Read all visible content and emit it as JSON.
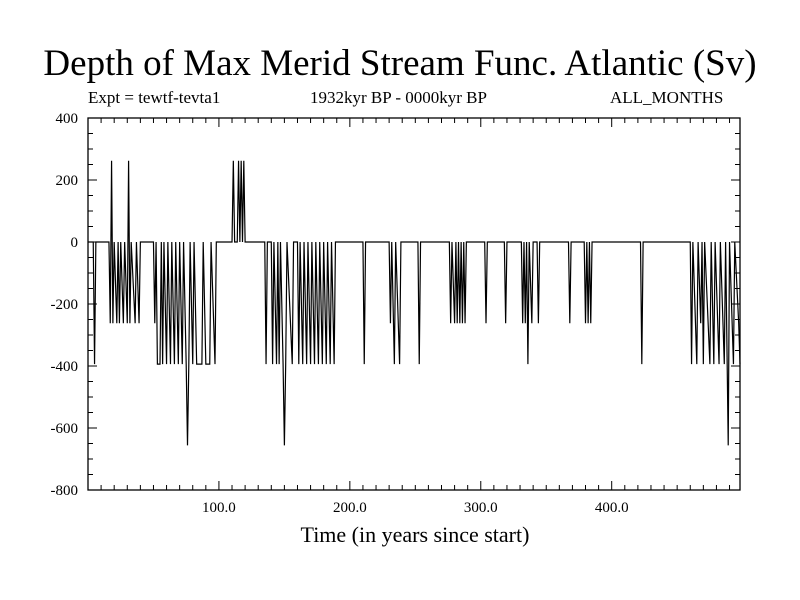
{
  "chart_data": {
    "type": "line",
    "title": "Depth of Max Merid Stream Func. Atlantic (Sv)",
    "experiment": "Expt = tewtf-tevta1",
    "period": "1932kyr BP - 0000kyr BP",
    "months": "ALL_MONTHS",
    "xlabel": "Time (in years since start)",
    "ylabel": "",
    "xlim": [
      0,
      498
    ],
    "ylim": [
      -800,
      400
    ],
    "x_ticks": [
      100,
      200,
      300,
      400
    ],
    "x_tick_labels": [
      "100.0",
      "200.0",
      "300.0",
      "400.0"
    ],
    "y_ticks": [
      400,
      200,
      0,
      -200,
      -400,
      -600,
      -800
    ],
    "y_tick_labels": [
      "400",
      "200",
      "0",
      "-200",
      "-400",
      "-600",
      "-800"
    ],
    "series": [
      {
        "name": "Depth of Max Merid Stream Func.",
        "segments": [
          [
            0,
            0
          ],
          [
            4,
            0
          ],
          [
            5,
            -394
          ],
          [
            6,
            0
          ],
          [
            16,
            0
          ],
          [
            17,
            -262
          ],
          [
            18,
            262
          ],
          [
            19,
            -262
          ],
          [
            20,
            0
          ],
          [
            22,
            -262
          ],
          [
            23,
            0
          ],
          [
            24,
            -262
          ],
          [
            25,
            0
          ],
          [
            27,
            -262
          ],
          [
            28,
            0
          ],
          [
            30,
            -262
          ],
          [
            31,
            262
          ],
          [
            32,
            -262
          ],
          [
            33,
            0
          ],
          [
            36,
            -262
          ],
          [
            37,
            0
          ],
          [
            39,
            -262
          ],
          [
            40,
            0
          ],
          [
            50,
            0
          ],
          [
            51,
            -262
          ],
          [
            52,
            0
          ],
          [
            53,
            -394
          ],
          [
            55,
            -394
          ],
          [
            56,
            0
          ],
          [
            57,
            -394
          ],
          [
            58,
            0
          ],
          [
            60,
            -394
          ],
          [
            61,
            0
          ],
          [
            63,
            -394
          ],
          [
            64,
            0
          ],
          [
            66,
            -394
          ],
          [
            67,
            0
          ],
          [
            69,
            -394
          ],
          [
            70,
            0
          ],
          [
            72,
            -394
          ],
          [
            73,
            0
          ],
          [
            75,
            -394
          ],
          [
            76,
            -656
          ],
          [
            77,
            -394
          ],
          [
            78,
            0
          ],
          [
            80,
            -394
          ],
          [
            81,
            0
          ],
          [
            83,
            -394
          ],
          [
            87,
            -394
          ],
          [
            88,
            0
          ],
          [
            90,
            -394
          ],
          [
            93,
            -394
          ],
          [
            94,
            0
          ],
          [
            97,
            -394
          ],
          [
            98,
            0
          ],
          [
            110,
            0
          ],
          [
            111,
            262
          ],
          [
            112,
            0
          ],
          [
            114,
            0
          ],
          [
            115,
            262
          ],
          [
            116,
            0
          ],
          [
            117,
            262
          ],
          [
            118,
            0
          ],
          [
            119,
            262
          ],
          [
            120,
            0
          ],
          [
            135,
            0
          ],
          [
            136,
            -394
          ],
          [
            137,
            0
          ],
          [
            140,
            0
          ],
          [
            141,
            -394
          ],
          [
            142,
            0
          ],
          [
            144,
            -394
          ],
          [
            145,
            0
          ],
          [
            146,
            -394
          ],
          [
            147,
            0
          ],
          [
            149,
            -394
          ],
          [
            150,
            -656
          ],
          [
            151,
            -394
          ],
          [
            152,
            0
          ],
          [
            156,
            -394
          ],
          [
            157,
            0
          ],
          [
            160,
            0
          ],
          [
            161,
            -394
          ],
          [
            162,
            0
          ],
          [
            164,
            -394
          ],
          [
            165,
            0
          ],
          [
            167,
            -394
          ],
          [
            168,
            0
          ],
          [
            170,
            -394
          ],
          [
            171,
            0
          ],
          [
            173,
            -394
          ],
          [
            174,
            0
          ],
          [
            176,
            -394
          ],
          [
            177,
            0
          ],
          [
            179,
            -394
          ],
          [
            180,
            0
          ],
          [
            182,
            -394
          ],
          [
            183,
            0
          ],
          [
            185,
            -394
          ],
          [
            186,
            0
          ],
          [
            188,
            -394
          ],
          [
            189,
            0
          ],
          [
            210,
            0
          ],
          [
            211,
            -394
          ],
          [
            212,
            0
          ],
          [
            230,
            0
          ],
          [
            231,
            -262
          ],
          [
            232,
            0
          ],
          [
            234,
            -394
          ],
          [
            235,
            0
          ],
          [
            238,
            -394
          ],
          [
            239,
            0
          ],
          [
            252,
            0
          ],
          [
            253,
            -394
          ],
          [
            254,
            0
          ],
          [
            276,
            0
          ],
          [
            277,
            -262
          ],
          [
            278,
            0
          ],
          [
            280,
            -262
          ],
          [
            281,
            0
          ],
          [
            282,
            -262
          ],
          [
            283,
            0
          ],
          [
            284,
            -262
          ],
          [
            285,
            0
          ],
          [
            286,
            -262
          ],
          [
            287,
            0
          ],
          [
            288,
            -262
          ],
          [
            289,
            0
          ],
          [
            303,
            0
          ],
          [
            304,
            -262
          ],
          [
            305,
            0
          ],
          [
            318,
            0
          ],
          [
            319,
            -262
          ],
          [
            320,
            0
          ],
          [
            331,
            0
          ],
          [
            332,
            -262
          ],
          [
            333,
            0
          ],
          [
            334,
            -262
          ],
          [
            335,
            0
          ],
          [
            336,
            -394
          ],
          [
            337,
            0
          ],
          [
            339,
            -262
          ],
          [
            340,
            0
          ],
          [
            343,
            0
          ],
          [
            344,
            -262
          ],
          [
            345,
            0
          ],
          [
            367,
            0
          ],
          [
            368,
            -262
          ],
          [
            369,
            0
          ],
          [
            379,
            0
          ],
          [
            380,
            -262
          ],
          [
            381,
            0
          ],
          [
            382,
            -262
          ],
          [
            383,
            0
          ],
          [
            384,
            -262
          ],
          [
            385,
            0
          ],
          [
            422,
            0
          ],
          [
            423,
            -394
          ],
          [
            424,
            0
          ],
          [
            460,
            0
          ],
          [
            461,
            -394
          ],
          [
            462,
            0
          ],
          [
            465,
            -394
          ],
          [
            466,
            0
          ],
          [
            468,
            -262
          ],
          [
            469,
            0
          ],
          [
            470,
            -394
          ],
          [
            471,
            0
          ],
          [
            475,
            -394
          ],
          [
            476,
            0
          ],
          [
            478,
            -394
          ],
          [
            479,
            0
          ],
          [
            482,
            -394
          ],
          [
            483,
            0
          ],
          [
            486,
            -394
          ],
          [
            487,
            0
          ],
          [
            489,
            -656
          ],
          [
            490,
            0
          ],
          [
            493,
            -394
          ],
          [
            494,
            0
          ],
          [
            497,
            -262
          ],
          [
            498,
            -394
          ]
        ]
      }
    ]
  }
}
